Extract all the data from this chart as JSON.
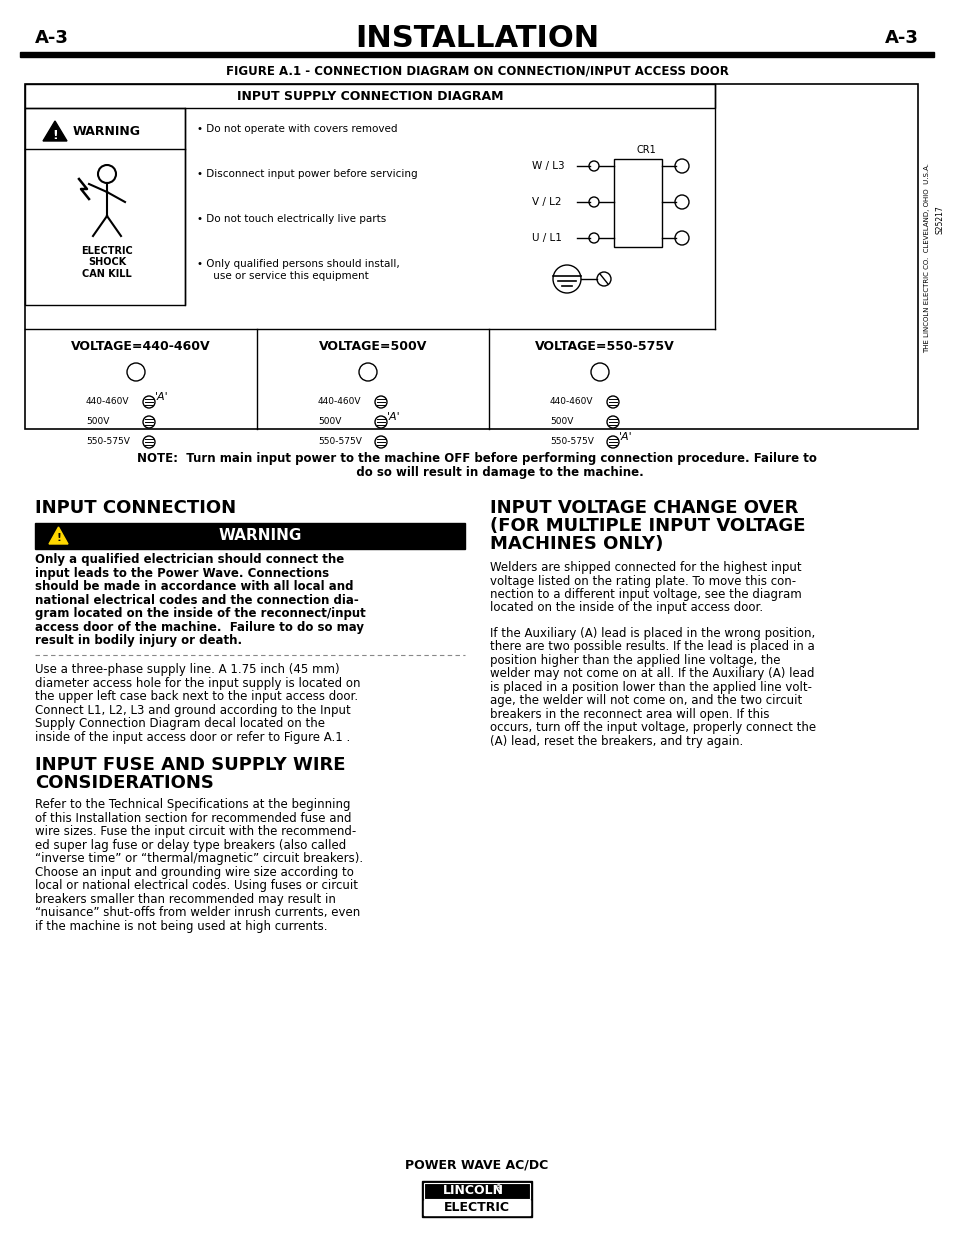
{
  "page_label_left": "A-3",
  "page_label_right": "A-3",
  "main_title": "INSTALLATION",
  "figure_caption": "FIGURE A.1 - CONNECTION DIAGRAM ON CONNECTION/INPUT ACCESS DOOR",
  "diagram_title": "INPUT SUPPLY CONNECTION DIAGRAM",
  "warning_label": "WARNING",
  "warning_bullets": [
    "Do not operate with covers removed",
    "Disconnect input power before servicing",
    "Do not touch electrically live parts",
    "Only qualified persons should install,\n     use or service this equipment"
  ],
  "electric_shock_text": "ELECTRIC\nSHOCK\nCAN KILL",
  "voltage_labels": [
    "VOLTAGE=440-460V",
    "VOLTAGE=500V",
    "VOLTAGE=550-575V"
  ],
  "wiring_labels": [
    "W / L3",
    "V / L2",
    "U / L1"
  ],
  "cr1_label": "CR1",
  "side_text": "THE LINCOLN ELECTRIC CO.  CLEVELAND, OHIO  U.S.A.",
  "side_number": "S25217",
  "note_text": "NOTE:  Turn main input power to the machine OFF before performing connection procedure. Failure to\n           do so will result in damage to the machine.",
  "section1_title": "INPUT CONNECTION",
  "warning_bar_text": "WARNING",
  "section1_body_lines": [
    "Only a qualified electrician should connect the",
    "input leads to the Power Wave. Connections",
    "should be made in accordance with all local and",
    "national electrical codes and the connection dia-",
    "gram located on the inside of the reconnect/input",
    "access door of the machine.  Failure to do so may",
    "result in bodily injury or death."
  ],
  "section1_body2_lines": [
    "Use a three-phase supply line. A 1.75 inch (45 mm)",
    "diameter access hole for the input supply is located on",
    "the upper left case back next to the input access door.",
    "Connect L1, L2, L3 and ground according to the Input",
    "Supply Connection Diagram decal located on the",
    "inside of the input access door or refer to Figure A.1 ."
  ],
  "section2_title_lines": [
    "INPUT FUSE AND SUPPLY WIRE",
    "CONSIDERATIONS"
  ],
  "section2_body_lines": [
    "Refer to the Technical Specifications at the beginning",
    "of this Installation section for recommended fuse and",
    "wire sizes. Fuse the input circuit with the recommend-",
    "ed super lag fuse or delay type breakers (also called",
    "“inverse time” or “thermal/magnetic” circuit breakers).",
    "Choose an input and grounding wire size according to",
    "local or national electrical codes. Using fuses or circuit",
    "breakers smaller than recommended may result in",
    "“nuisance” shut-offs from welder inrush currents, even",
    "if the machine is not being used at high currents."
  ],
  "section3_title_lines": [
    "INPUT VOLTAGE CHANGE OVER",
    "(FOR MULTIPLE INPUT VOLTAGE",
    "MACHINES ONLY)"
  ],
  "section3_body_lines": [
    "Welders are shipped connected for the highest input",
    "voltage listed on the rating plate. To move this con-",
    "nection to a different input voltage, see the diagram",
    "located on the inside of the input access door."
  ],
  "section3_body2_lines": [
    "If the Auxiliary (A) lead is placed in the wrong position,",
    "there are two possible results. If the lead is placed in a",
    "position higher than the applied line voltage, the",
    "welder may not come on at all. If the Auxiliary (A) lead",
    "is placed in a position lower than the applied line volt-",
    "age, the welder will not come on, and the two circuit",
    "breakers in the reconnect area will open. If this",
    "occurs, turn off the input voltage, properly connect the",
    "(A) lead, reset the breakers, and try again."
  ],
  "footer_text": "POWER WAVE AC/DC",
  "bg_color": "#ffffff",
  "text_color": "#000000"
}
